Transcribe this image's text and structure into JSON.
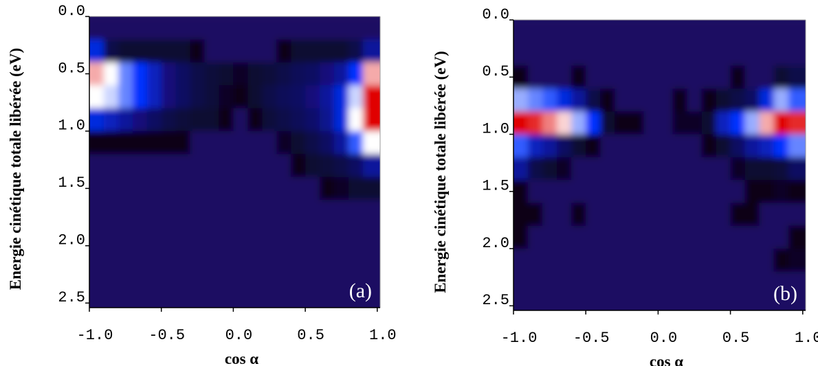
{
  "chart_data": [
    {
      "type": "heatmap",
      "panel_label": "(a)",
      "x_label": "cos α",
      "y_label": "Energie cinétique totale libérée (eV)",
      "xlim": [
        -1.0,
        1.02
      ],
      "ylim": [
        0,
        2.54
      ],
      "y_inverted": true,
      "xticks": [
        {
          "value": -1.0,
          "label": "-1.0"
        },
        {
          "value": -0.5,
          "label": "-0.5"
        },
        {
          "value": 0,
          "label": "0.0"
        },
        {
          "value": 0.5,
          "label": "0.5"
        },
        {
          "value": 1.0,
          "label": "1.0"
        }
      ],
      "yticks": [
        {
          "value": 0,
          "label": "0.0"
        },
        {
          "value": 0.5,
          "label": "0.5"
        },
        {
          "value": 1.0,
          "label": "1.0"
        },
        {
          "value": 1.5,
          "label": "1.5"
        },
        {
          "value": 2.0,
          "label": "2.0"
        },
        {
          "value": 2.5,
          "label": "2.5"
        }
      ],
      "x_edges": [
        -1.0,
        -0.9,
        -0.8,
        -0.7,
        -0.6,
        -0.5,
        -0.4,
        -0.3,
        -0.2,
        -0.1,
        0,
        0.1,
        0.2,
        0.3,
        0.4,
        0.5,
        0.6,
        0.7,
        0.8,
        0.9,
        1.0
      ],
      "y_edges": [
        0,
        0.2,
        0.4,
        0.6,
        0.8,
        1.0,
        1.2,
        1.4,
        1.6,
        1.8,
        2.0,
        2.2,
        2.4,
        2.6
      ],
      "colorscale": [
        [
          0,
          "#1e0a62"
        ],
        [
          0.05,
          "#080418"
        ],
        [
          0.25,
          "#12107a"
        ],
        [
          0.45,
          "#0033ff"
        ],
        [
          0.7,
          "#ffffff"
        ],
        [
          1,
          "#e00000"
        ]
      ],
      "z": [
        [
          0,
          0,
          0,
          0,
          0,
          0,
          0,
          0,
          0,
          0,
          0,
          0,
          0,
          0,
          0,
          0,
          0,
          0,
          0,
          0
        ],
        [
          0.4,
          0.15,
          0.1,
          0.1,
          0.1,
          0.1,
          0.1,
          0.05,
          0,
          0,
          0,
          0,
          0,
          0.05,
          0.1,
          0.1,
          0.1,
          0.1,
          0.15,
          0.3
        ],
        [
          0.8,
          0.7,
          0.55,
          0.45,
          0.35,
          0.25,
          0.2,
          0.15,
          0.12,
          0.1,
          0.08,
          0.1,
          0.12,
          0.15,
          0.18,
          0.2,
          0.25,
          0.3,
          0.45,
          0.8
        ],
        [
          0.7,
          0.65,
          0.55,
          0.45,
          0.35,
          0.25,
          0.2,
          0.15,
          0.12,
          0.08,
          0.05,
          0.1,
          0.15,
          0.18,
          0.2,
          0.25,
          0.3,
          0.4,
          0.65,
          1
        ],
        [
          0.4,
          0.35,
          0.3,
          0.25,
          0.2,
          0.15,
          0.12,
          0.1,
          0.1,
          0.05,
          0,
          0.05,
          0.12,
          0.15,
          0.18,
          0.22,
          0.28,
          0.4,
          0.7,
          1
        ],
        [
          0.05,
          0.05,
          0.05,
          0.05,
          0.05,
          0.05,
          0.05,
          0,
          0,
          0,
          0,
          0,
          0,
          0.08,
          0.1,
          0.15,
          0.2,
          0.3,
          0.5,
          0.7
        ],
        [
          0,
          0,
          0,
          0,
          0,
          0,
          0,
          0,
          0,
          0,
          0,
          0,
          0,
          0,
          0.05,
          0.1,
          0.12,
          0.15,
          0.2,
          0.3
        ],
        [
          0,
          0,
          0,
          0,
          0,
          0,
          0,
          0,
          0,
          0,
          0,
          0,
          0,
          0,
          0,
          0,
          0.05,
          0.08,
          0.1,
          0.1
        ],
        [
          0,
          0,
          0,
          0,
          0,
          0,
          0,
          0,
          0,
          0,
          0,
          0,
          0,
          0,
          0,
          0,
          0,
          0,
          0,
          0
        ],
        [
          0,
          0,
          0,
          0,
          0,
          0,
          0,
          0,
          0,
          0,
          0,
          0,
          0,
          0,
          0,
          0,
          0,
          0,
          0,
          0
        ],
        [
          0,
          0,
          0,
          0,
          0,
          0,
          0,
          0,
          0,
          0,
          0,
          0,
          0,
          0,
          0,
          0,
          0,
          0,
          0,
          0
        ],
        [
          0,
          0,
          0,
          0,
          0,
          0,
          0,
          0,
          0,
          0,
          0,
          0,
          0,
          0,
          0,
          0,
          0,
          0,
          0,
          0
        ],
        [
          0,
          0,
          0,
          0,
          0,
          0,
          0,
          0,
          0,
          0,
          0,
          0,
          0,
          0,
          0,
          0,
          0,
          0,
          0,
          0
        ]
      ]
    },
    {
      "type": "heatmap",
      "panel_label": "(b)",
      "x_label": "cos α",
      "y_label": "Energie cinétique totale libérée (eV)",
      "xlim": [
        -1.0,
        1.02
      ],
      "ylim": [
        0,
        2.54
      ],
      "y_inverted": true,
      "xticks": [
        {
          "value": -1.0,
          "label": "-1.0"
        },
        {
          "value": -0.5,
          "label": "-0.5"
        },
        {
          "value": 0,
          "label": "0.0"
        },
        {
          "value": 0.5,
          "label": "0.5"
        },
        {
          "value": 1.0,
          "label": "1.0"
        }
      ],
      "yticks": [
        {
          "value": 0,
          "label": "0.0"
        },
        {
          "value": 0.5,
          "label": "0.5"
        },
        {
          "value": 1.0,
          "label": "1.0"
        },
        {
          "value": 1.5,
          "label": "1.5"
        },
        {
          "value": 2.0,
          "label": "2.0"
        },
        {
          "value": 2.5,
          "label": "2.5"
        }
      ],
      "x_edges": [
        -1.0,
        -0.9,
        -0.8,
        -0.7,
        -0.6,
        -0.5,
        -0.4,
        -0.3,
        -0.2,
        -0.1,
        0,
        0.1,
        0.2,
        0.3,
        0.4,
        0.5,
        0.6,
        0.7,
        0.8,
        0.9,
        1.0
      ],
      "y_edges": [
        0,
        0.2,
        0.4,
        0.6,
        0.8,
        1.0,
        1.2,
        1.4,
        1.6,
        1.8,
        2.0,
        2.2,
        2.4,
        2.6
      ],
      "colorscale": [
        [
          0,
          "#1e0a62"
        ],
        [
          0.05,
          "#080418"
        ],
        [
          0.25,
          "#12107a"
        ],
        [
          0.45,
          "#0033ff"
        ],
        [
          0.7,
          "#ffffff"
        ],
        [
          1,
          "#e00000"
        ]
      ],
      "z": [
        [
          0,
          0,
          0,
          0,
          0,
          0,
          0,
          0,
          0,
          0,
          0,
          0,
          0,
          0,
          0,
          0,
          0,
          0,
          0,
          0
        ],
        [
          0,
          0,
          0,
          0,
          0,
          0,
          0,
          0,
          0,
          0,
          0,
          0,
          0,
          0,
          0,
          0,
          0,
          0,
          0,
          0
        ],
        [
          0.05,
          0,
          0,
          0,
          0.05,
          0,
          0,
          0,
          0,
          0,
          0,
          0,
          0,
          0,
          0,
          0.05,
          0,
          0,
          0.1,
          0.15
        ],
        [
          0.6,
          0.55,
          0.5,
          0.4,
          0.3,
          0.15,
          0.05,
          0,
          0,
          0,
          0,
          0.05,
          0,
          0.05,
          0.1,
          0.15,
          0.2,
          0.4,
          0.6,
          0.5
        ],
        [
          1,
          0.95,
          0.85,
          0.75,
          0.6,
          0.45,
          0.1,
          0.05,
          0.05,
          0,
          0,
          0.08,
          0.08,
          0.1,
          0.35,
          0.45,
          0.6,
          0.8,
          1,
          0.95
        ],
        [
          0.5,
          0.35,
          0.3,
          0.2,
          0.1,
          0.05,
          0,
          0,
          0,
          0,
          0,
          0,
          0,
          0.05,
          0.1,
          0.2,
          0.3,
          0.35,
          0.45,
          0.55
        ],
        [
          0.3,
          0.15,
          0.1,
          0.08,
          0,
          0,
          0,
          0,
          0,
          0,
          0,
          0,
          0,
          0,
          0,
          0.08,
          0.1,
          0.1,
          0.12,
          0.2
        ],
        [
          0.05,
          0,
          0,
          0,
          0,
          0,
          0,
          0,
          0,
          0,
          0,
          0,
          0,
          0,
          0,
          0,
          0.05,
          0.05,
          0.08,
          0.05
        ],
        [
          0.05,
          0.05,
          0,
          0,
          0.05,
          0,
          0,
          0,
          0,
          0,
          0,
          0,
          0,
          0,
          0,
          0.05,
          0.05,
          0,
          0,
          0
        ],
        [
          0.05,
          0,
          0,
          0,
          0,
          0,
          0,
          0,
          0,
          0,
          0,
          0,
          0,
          0,
          0,
          0,
          0,
          0,
          0,
          0.05
        ],
        [
          0,
          0,
          0,
          0,
          0,
          0,
          0,
          0,
          0,
          0,
          0,
          0,
          0,
          0,
          0,
          0,
          0,
          0,
          0.05,
          0.08
        ],
        [
          0,
          0,
          0,
          0,
          0,
          0,
          0,
          0,
          0,
          0,
          0,
          0,
          0,
          0,
          0,
          0,
          0,
          0,
          0,
          0
        ],
        [
          0,
          0,
          0,
          0,
          0,
          0,
          0,
          0,
          0,
          0,
          0,
          0,
          0,
          0,
          0,
          0,
          0,
          0,
          0,
          0
        ]
      ]
    }
  ]
}
